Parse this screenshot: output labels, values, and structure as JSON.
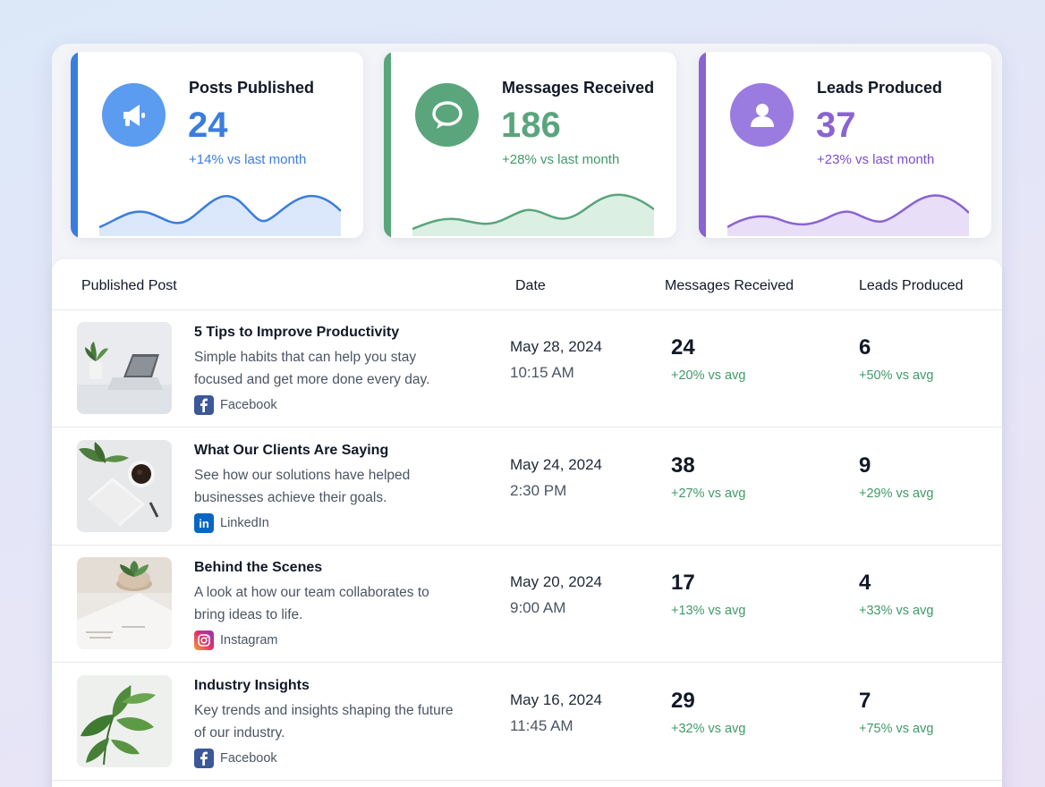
{
  "colors": {
    "blue": "#3b7ddd",
    "green": "#5aa57c",
    "purple": "#8a63d2",
    "positive": "#3f9a68"
  },
  "stats": [
    {
      "title": "Posts Published",
      "value": "24",
      "change": "+14% vs last month",
      "icon": "megaphone-icon",
      "color": "#3b7ddd",
      "icon_bg": "#5b9bf0",
      "change_color": "#3b7ddd",
      "fill": "#dbe8fb"
    },
    {
      "title": "Messages Received",
      "value": "186",
      "change": "+28% vs last month",
      "icon": "chat-bubble-icon",
      "color": "#5aa57c",
      "icon_bg": "#5aa57c",
      "change_color": "#3f9a68",
      "fill": "#dcefe3"
    },
    {
      "title": "Leads Produced",
      "value": "37",
      "change": "+23% vs last month",
      "icon": "user-icon",
      "color": "#8a63d2",
      "icon_bg": "#9a7be0",
      "change_color": "#7b4fc8",
      "fill": "#e8def8"
    }
  ],
  "table": {
    "headers": {
      "post": "Published Post",
      "date": "Date",
      "messages": "Messages Received",
      "leads": "Leads Produced"
    },
    "rows": [
      {
        "title": "5 Tips to Improve Productivity",
        "desc": "Simple habits that can help you stay focused and get more done every day.",
        "platform": "Facebook",
        "platform_icon": "facebook-icon",
        "thumb": "laptop-plant",
        "date": "May 28, 2024",
        "time": "10:15 AM",
        "messages": "24",
        "messages_change": "+20% vs avg",
        "leads": "6",
        "leads_change": "+50% vs avg"
      },
      {
        "title": "What Our Clients Are Saying",
        "desc": "See how our solutions have helped businesses achieve their goals.",
        "platform": "LinkedIn",
        "platform_icon": "linkedin-icon",
        "thumb": "coffee-notebook",
        "date": "May 24, 2024",
        "time": "2:30 PM",
        "messages": "38",
        "messages_change": "+27% vs avg",
        "leads": "9",
        "leads_change": "+29% vs avg"
      },
      {
        "title": "Behind the Scenes",
        "desc": "A look at how our team collaborates to bring ideas to life.",
        "platform": "Instagram",
        "platform_icon": "instagram-icon",
        "thumb": "succulent-notes",
        "date": "May 20, 2024",
        "time": "9:00 AM",
        "messages": "17",
        "messages_change": "+13% vs avg",
        "leads": "4",
        "leads_change": "+33% vs avg"
      },
      {
        "title": "Industry Insights",
        "desc": "Key trends and insights shaping the future of our industry.",
        "platform": "Facebook",
        "platform_icon": "facebook-icon",
        "thumb": "leaf-plant",
        "date": "May 16, 2024",
        "time": "11:45 AM",
        "messages": "29",
        "messages_change": "+32% vs avg",
        "leads": "7",
        "leads_change": "+75% vs avg"
      }
    ]
  }
}
